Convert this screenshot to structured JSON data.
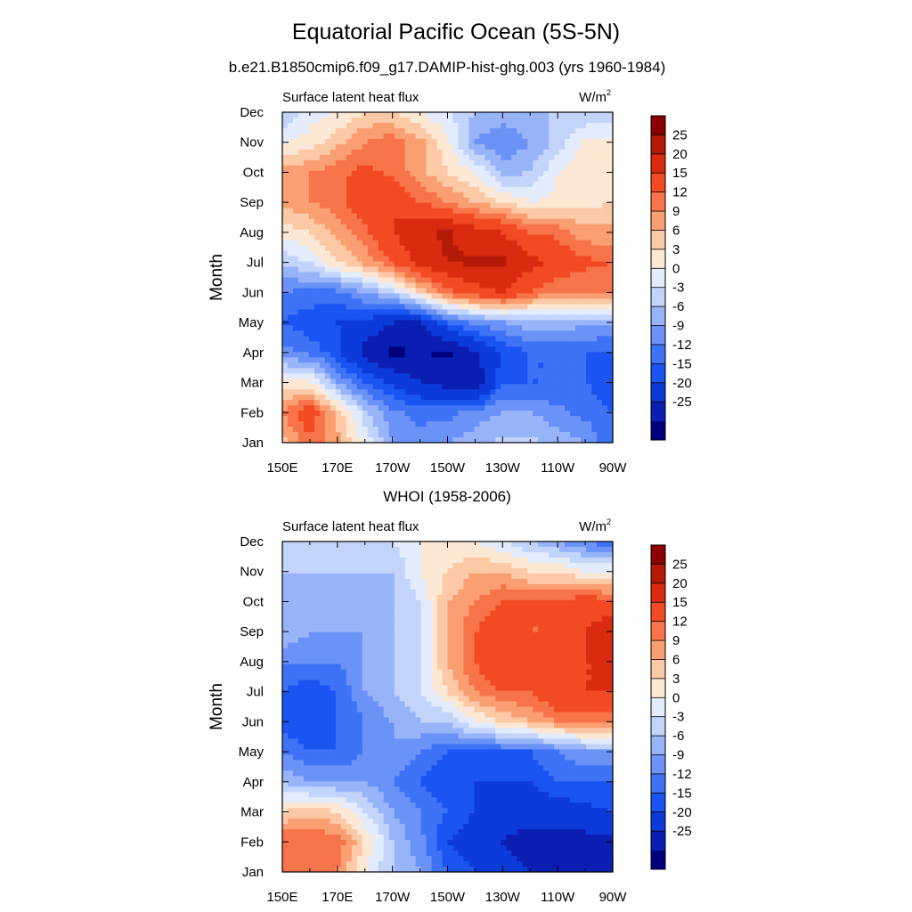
{
  "figure": {
    "title": "Equatorial Pacific Ocean (5S-5N)"
  },
  "colorbar": {
    "colors": [
      "#00007f",
      "#0a1fb2",
      "#0d3bd9",
      "#1a55f2",
      "#3f73f5",
      "#6b92f7",
      "#98b4f8",
      "#c3d4fb",
      "#e3ecfd",
      "#fde8d5",
      "#fbc9a5",
      "#fa9f72",
      "#f7744a",
      "#f24a24",
      "#d92b0f",
      "#b31a07",
      "#8b0000"
    ],
    "labels": [
      "25",
      "20",
      "15",
      "12",
      "9",
      "6",
      "3",
      "0",
      "-3",
      "-6",
      "-9",
      "-12",
      "-15",
      "-20",
      "-25"
    ],
    "levels": [
      -25,
      -20,
      -15,
      -12,
      -9,
      -6,
      -3,
      0,
      3,
      6,
      9,
      12,
      15,
      20,
      25
    ]
  },
  "chart_data": [
    {
      "type": "heatmap",
      "title": "b.e21.B1850cmip6.f09_g17.DAMIP-hist-ghg.003 (yrs 1960-1984)",
      "left_label": "Surface latent heat flux",
      "units_label": "W/m",
      "units_sup": "2",
      "ylabel": "Month",
      "x_ticks": [
        "150E",
        "170E",
        "170W",
        "150W",
        "130W",
        "110W",
        "90W"
      ],
      "x_degE": [
        150,
        170,
        190,
        210,
        230,
        250,
        270
      ],
      "y_ticks": [
        "Jan",
        "Feb",
        "Mar",
        "Apr",
        "May",
        "Jun",
        "Jul",
        "Aug",
        "Sep",
        "Oct",
        "Nov",
        "Dec"
      ],
      "xlim": [
        150,
        270
      ],
      "ylim": [
        1,
        12
      ],
      "x": [
        150,
        160,
        170,
        180,
        190,
        200,
        210,
        220,
        230,
        240,
        250,
        260,
        270
      ],
      "y": [
        1,
        2,
        3,
        4,
        5,
        6,
        7,
        8,
        9,
        10,
        11,
        12
      ],
      "values": [
        [
          8,
          14,
          10,
          2,
          -6,
          -8,
          -6,
          -4,
          -2,
          -2,
          -4,
          -6,
          -12
        ],
        [
          12,
          18,
          8,
          -2,
          -8,
          -10,
          -10,
          -8,
          -6,
          -6,
          -8,
          -10,
          -12
        ],
        [
          4,
          4,
          -6,
          -12,
          -16,
          -20,
          -22,
          -25,
          -12,
          -12,
          -12,
          -12,
          -14
        ],
        [
          -8,
          -10,
          -14,
          -22,
          -26,
          -25,
          -26,
          -20,
          -15,
          -12,
          -12,
          -12,
          -12
        ],
        [
          -12,
          -14,
          -15,
          -16,
          -20,
          -20,
          -12,
          -8,
          -6,
          -4,
          -4,
          -5,
          -6
        ],
        [
          -9,
          -10,
          -10,
          -6,
          -2,
          6,
          14,
          18,
          20,
          15,
          12,
          12,
          12
        ],
        [
          -2,
          0,
          6,
          10,
          15,
          22,
          25,
          26,
          26,
          22,
          18,
          16,
          15
        ],
        [
          4,
          6,
          10,
          14,
          20,
          24,
          26,
          22,
          20,
          15,
          14,
          10,
          10
        ],
        [
          10,
          12,
          14,
          18,
          20,
          15,
          12,
          9,
          6,
          3,
          4,
          5,
          6
        ],
        [
          10,
          12,
          14,
          16,
          14,
          10,
          6,
          3,
          -4,
          -3,
          3,
          6,
          6
        ],
        [
          3,
          4,
          8,
          12,
          14,
          10,
          4,
          -6,
          -9,
          -6,
          -2,
          4,
          4
        ],
        [
          -3,
          2,
          3,
          6,
          6,
          3,
          0,
          -3,
          -4,
          -3,
          -3,
          -3,
          -3
        ]
      ]
    },
    {
      "type": "heatmap",
      "title": "WHOI (1958-2006)",
      "left_label": "Surface latent heat flux",
      "units_label": "W/m",
      "units_sup": "2",
      "ylabel": "Month",
      "x_ticks": [
        "150E",
        "170E",
        "170W",
        "150W",
        "130W",
        "110W",
        "90W"
      ],
      "x_degE": [
        150,
        170,
        190,
        210,
        230,
        250,
        270
      ],
      "y_ticks": [
        "Jan",
        "Feb",
        "Mar",
        "Apr",
        "May",
        "Jun",
        "Jul",
        "Aug",
        "Sep",
        "Oct",
        "Nov",
        "Dec"
      ],
      "xlim": [
        150,
        270
      ],
      "ylim": [
        1,
        12
      ],
      "x": [
        150,
        160,
        170,
        180,
        190,
        200,
        210,
        220,
        230,
        240,
        250,
        260,
        270
      ],
      "y": [
        1,
        2,
        3,
        4,
        5,
        6,
        7,
        8,
        9,
        10,
        11,
        12
      ],
      "values": [
        [
          12,
          14,
          12,
          3,
          -3,
          -6,
          -12,
          -15,
          -18,
          -20,
          -22,
          -24,
          -25
        ],
        [
          15,
          15,
          14,
          6,
          -3,
          -8,
          -15,
          -18,
          -20,
          -22,
          -22,
          -22,
          -22
        ],
        [
          6,
          8,
          6,
          0,
          -6,
          -9,
          -12,
          -15,
          -18,
          -18,
          -18,
          -16,
          -15
        ],
        [
          -3,
          -6,
          -6,
          -6,
          -9,
          -12,
          -15,
          -15,
          -15,
          -15,
          -12,
          -12,
          -12
        ],
        [
          -9,
          -12,
          -12,
          -9,
          -6,
          -9,
          -12,
          -12,
          -12,
          -12,
          -9,
          -6,
          -6
        ],
        [
          -14,
          -14,
          -12,
          -9,
          -6,
          -3,
          -3,
          3,
          6,
          9,
          12,
          12,
          12
        ],
        [
          -12,
          -14,
          -12,
          -6,
          -3,
          0,
          6,
          12,
          15,
          15,
          20,
          20,
          20
        ],
        [
          -9,
          -9,
          -9,
          -6,
          -3,
          0,
          9,
          15,
          20,
          18,
          18,
          20,
          20
        ],
        [
          -3,
          -6,
          -6,
          -6,
          -3,
          0,
          9,
          15,
          18,
          15,
          15,
          20,
          25
        ],
        [
          -3,
          -6,
          -6,
          -6,
          -3,
          0,
          9,
          12,
          15,
          15,
          15,
          18,
          15
        ],
        [
          -3,
          -3,
          -3,
          -3,
          -3,
          3,
          6,
          9,
          9,
          6,
          6,
          3,
          3
        ],
        [
          0,
          0,
          0,
          -3,
          0,
          3,
          3,
          3,
          0,
          -3,
          -6,
          -9,
          -12
        ]
      ]
    }
  ]
}
